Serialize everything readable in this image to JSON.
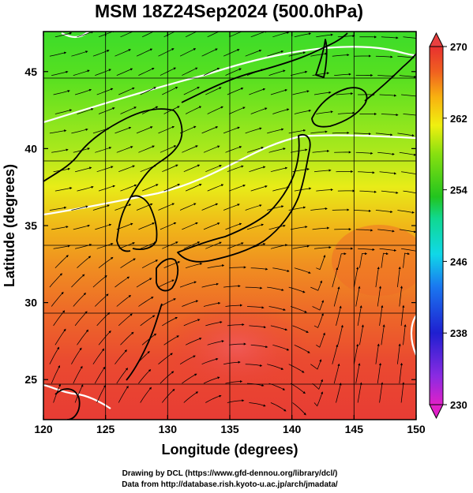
{
  "chart_data": {
    "type": "heatmap",
    "title": "MSM 18Z24Sep2024 (500.0hPa)",
    "xlabel": "Longitude (degrees)",
    "ylabel": "Latitude  (degrees)",
    "xlim": [
      120,
      150
    ],
    "ylim": [
      22.4,
      47.6
    ],
    "x_ticks": [
      120,
      125,
      130,
      135,
      140,
      145,
      150
    ],
    "y_ticks": [
      25,
      30,
      35,
      40,
      45
    ],
    "colorbar": {
      "min": 230,
      "max": 270,
      "ticks": [
        230,
        238,
        246,
        254,
        262,
        270
      ],
      "colors": [
        "#e020c8",
        "#8a2be2",
        "#1f1fd0",
        "#1a78f0",
        "#10d8e8",
        "#10d890",
        "#22c41e",
        "#88e010",
        "#f0f010",
        "#f8b010",
        "#f06020",
        "#e83030"
      ]
    },
    "temperature_rows": [
      {
        "lat": 47,
        "temp": 257.0
      },
      {
        "lat": 44,
        "temp": 258.0
      },
      {
        "lat": 41,
        "temp": 259.0
      },
      {
        "lat": 38,
        "temp": 260.5
      },
      {
        "lat": 35,
        "temp": 263.0
      },
      {
        "lat": 32,
        "temp": 265.0
      },
      {
        "lat": 29,
        "temp": 267.0
      },
      {
        "lat": 26,
        "temp": 268.0
      },
      {
        "lat": 23,
        "temp": 268.5
      }
    ],
    "wind_regime": "westerly jet north of 33N, weak anticyclonic circulation to the south"
  },
  "credits": {
    "line1": "Drawing by DCL (https://www.gfd-dennou.org/library/dcl/)",
    "line2": "Data from http://database.rish.kyoto-u.ac.jp/arch/jmadata/"
  }
}
